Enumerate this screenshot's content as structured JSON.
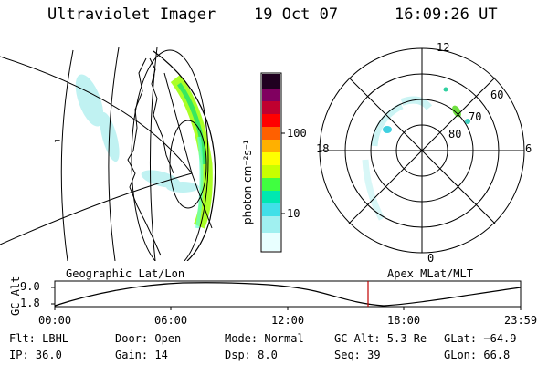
{
  "header": {
    "instrument": "Ultraviolet Imager",
    "date": "19 Oct 07",
    "time": "16:09:26 UT"
  },
  "colorbar": {
    "unit_label": "photon cm⁻²s⁻¹",
    "ticks": [
      "100",
      "10"
    ],
    "colors": [
      "#e8ffff",
      "#80ffe8",
      "#00e8b0",
      "#40ff40",
      "#c8ff00",
      "#ffff00",
      "#ffb000",
      "#ff6000",
      "#ff0000",
      "#c00030",
      "#800060",
      "#200020"
    ]
  },
  "polar_plot": {
    "mlt_labels": {
      "top": "12",
      "left": "18",
      "right": "6",
      "bottom": "0"
    },
    "lat_labels": [
      "60",
      "70",
      "80"
    ]
  },
  "map_labels": {
    "left": "Geographic Lat/Lon",
    "right": "Apex MLat/MLT"
  },
  "altitude_plot": {
    "axis_label": "GC Alt",
    "y_ticks": [
      "9.0",
      "1.8"
    ],
    "x_ticks": [
      "00:00",
      "06:00",
      "12:00",
      "18:00",
      "23:59"
    ],
    "current_time_marker_color": "#c00000"
  },
  "status": {
    "flt": "Flt: LBHL",
    "ip": "IP: 36.0",
    "door": "Door: Open",
    "gain": "Gain: 14",
    "mode": "Mode: Normal",
    "dsp": "Dsp:    8.0",
    "gc_alt": "GC Alt: 5.3 Re",
    "seq": "Seq: 39",
    "glat": "GLat: −64.9",
    "glon": "GLon:  66.8"
  }
}
